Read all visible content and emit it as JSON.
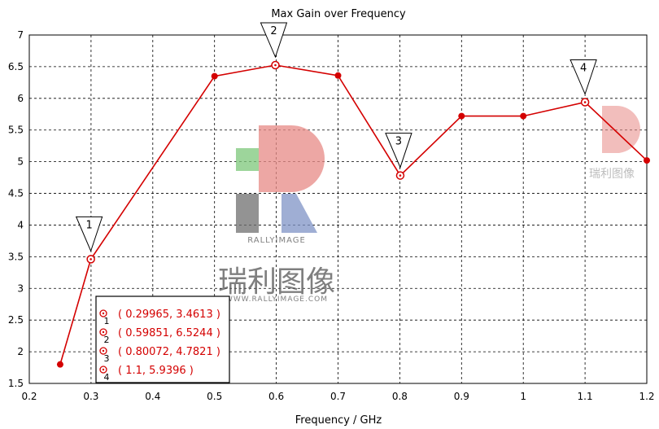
{
  "chart_data": {
    "type": "line",
    "title": "Max Gain over Frequency",
    "xlabel": "Frequency / GHz",
    "ylabel": "",
    "xlim": [
      0.2,
      1.2
    ],
    "ylim": [
      1.5,
      7
    ],
    "x_ticks": [
      "0.2",
      "0.3",
      "0.4",
      "0.5",
      "0.6",
      "0.7",
      "0.8",
      "0.9",
      "1",
      "1.1",
      "1.2"
    ],
    "y_ticks": [
      "1.5",
      "2",
      "2.5",
      "3",
      "3.5",
      "4",
      "4.5",
      "5",
      "5.5",
      "6",
      "6.5",
      "7"
    ],
    "grid": true,
    "line_color": "#d40000",
    "x": [
      0.25,
      0.29965,
      0.5,
      0.59851,
      0.7,
      0.80072,
      0.9,
      1.0,
      1.1,
      1.2
    ],
    "y": [
      1.8,
      3.4613,
      6.35,
      6.5244,
      6.36,
      4.7821,
      5.72,
      5.72,
      5.9396,
      5.02
    ],
    "markers": [
      {
        "id": "1",
        "x": 0.29965,
        "y": 3.4613
      },
      {
        "id": "2",
        "x": 0.59851,
        "y": 6.5244
      },
      {
        "id": "3",
        "x": 0.80072,
        "y": 4.7821
      },
      {
        "id": "4",
        "x": 1.1,
        "y": 5.9396
      }
    ],
    "legend": {
      "placement": "bottom-left",
      "entries": [
        {
          "id": "1",
          "text": "( 0.29965, 3.4613 )"
        },
        {
          "id": "2",
          "text": "( 0.59851, 6.5244 )"
        },
        {
          "id": "3",
          "text": "( 0.80072, 4.7821 )"
        },
        {
          "id": "4",
          "text": "( 1.1, 5.9396 )"
        }
      ]
    }
  },
  "watermark": {
    "brand": "RALLYIMAGE",
    "chinese": "瑞利图像",
    "url": "WWW.RALLYIMAGE.COM"
  }
}
